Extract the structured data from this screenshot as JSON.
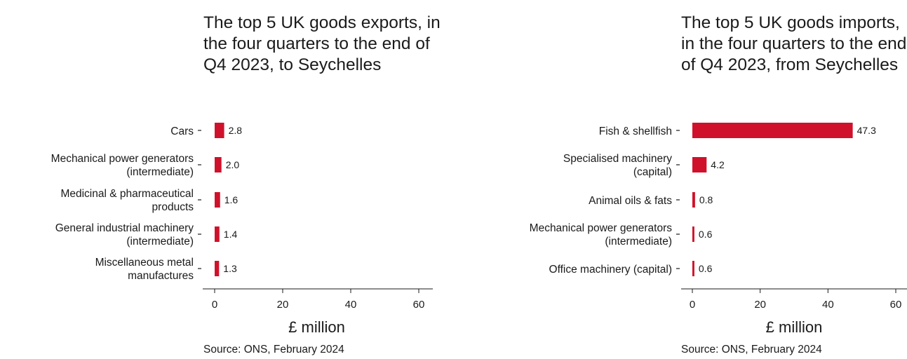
{
  "chart_data": [
    {
      "type": "bar",
      "orientation": "horizontal",
      "title": "The top 5 UK goods exports, in the four quarters to the end of Q4 2023, to Seychelles",
      "categories": [
        [
          "Cars"
        ],
        [
          "Mechanical power generators",
          "(intermediate)"
        ],
        [
          "Medicinal & pharmaceutical",
          "products"
        ],
        [
          "General industrial machinery",
          "(intermediate)"
        ],
        [
          "Miscellaneous metal",
          "manufactures"
        ]
      ],
      "values": [
        2.8,
        2.0,
        1.6,
        1.4,
        1.3
      ],
      "value_labels": [
        "2.8",
        "2.0",
        "1.6",
        "1.4",
        "1.3"
      ],
      "xlabel": "£ million",
      "xlim": [
        0,
        60
      ],
      "xticks": [
        0,
        20,
        40,
        60
      ],
      "bar_color": "#d0112b",
      "grid": false,
      "source": "Source: ONS, February 2024"
    },
    {
      "type": "bar",
      "orientation": "horizontal",
      "title": "The top 5 UK goods imports, in the four quarters to the end of Q4 2023, from Seychelles",
      "categories": [
        [
          "Fish & shellfish"
        ],
        [
          "Specialised machinery",
          "(capital)"
        ],
        [
          "Animal oils & fats"
        ],
        [
          "Mechanical power generators",
          "(intermediate)"
        ],
        [
          "Office machinery (capital)"
        ]
      ],
      "values": [
        47.3,
        4.2,
        0.8,
        0.6,
        0.6
      ],
      "value_labels": [
        "47.3",
        "4.2",
        "0.8",
        "0.6",
        "0.6"
      ],
      "xlabel": "£ million",
      "xlim": [
        0,
        60
      ],
      "xticks": [
        0,
        20,
        40,
        60
      ],
      "bar_color": "#d0112b",
      "grid": false,
      "source": "Source: ONS, February 2024"
    }
  ]
}
